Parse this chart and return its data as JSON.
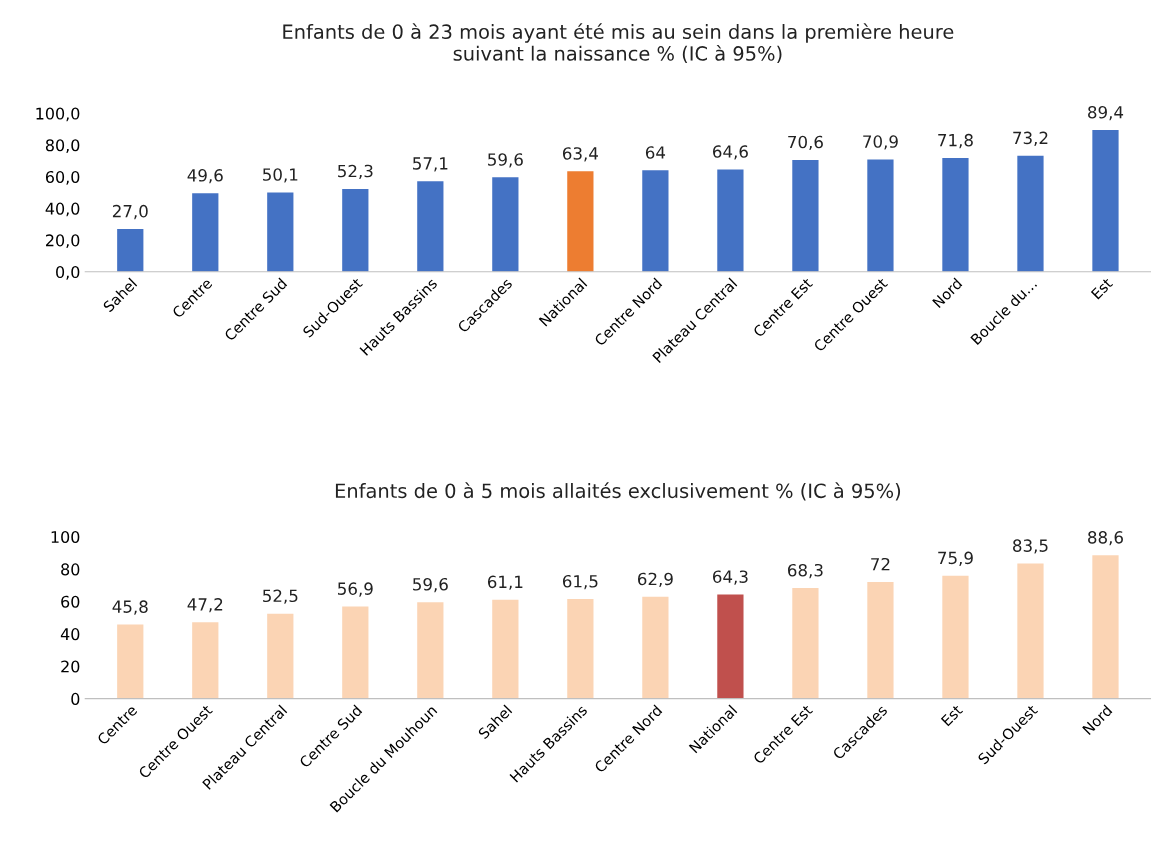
{
  "chart_data": [
    {
      "type": "bar",
      "title": "Enfants de 0 à 23 mois ayant été mis au sein dans la première heure\nsuivant la naissance % (IC à 95%)",
      "categories": [
        "Sahel",
        "Centre",
        "Centre Sud",
        "Sud-Ouest",
        "Hauts Bassins",
        "Cascades",
        "National",
        "Centre Nord",
        "Plateau Central",
        "Centre Est",
        "Centre Ouest",
        "Nord",
        "Boucle du…",
        "Est"
      ],
      "values": [
        27.0,
        49.6,
        50.1,
        52.3,
        57.1,
        59.6,
        63.4,
        64,
        64.6,
        70.6,
        70.9,
        71.8,
        73.2,
        89.4
      ],
      "value_labels": [
        "27,0",
        "49,6",
        "50,1",
        "52,3",
        "57,1",
        "59,6",
        "63,4",
        "64",
        "64,6",
        "70,6",
        "70,9",
        "71,8",
        "73,2",
        "89,4"
      ],
      "colors": [
        "#4472c4",
        "#4472c4",
        "#4472c4",
        "#4472c4",
        "#4472c4",
        "#4472c4",
        "#ed7d31",
        "#4472c4",
        "#4472c4",
        "#4472c4",
        "#4472c4",
        "#4472c4",
        "#4472c4",
        "#4472c4"
      ],
      "ylim": [
        0,
        100
      ],
      "yticks": [
        {
          "value": 0,
          "label": "0,0"
        },
        {
          "value": 20,
          "label": "20,0"
        },
        {
          "value": 40,
          "label": "40,0"
        },
        {
          "value": 60,
          "label": "60,0"
        },
        {
          "value": 80,
          "label": "80,0"
        },
        {
          "value": 100,
          "label": "100,0"
        }
      ]
    },
    {
      "type": "bar",
      "title": "Enfants de 0 à 5 mois allaités exclusivement % (IC à 95%)",
      "categories": [
        "Centre",
        "Centre Ouest",
        "Plateau Central",
        "Centre Sud",
        "Boucle du Mouhoun",
        "Sahel",
        "Hauts Bassins",
        "Centre Nord",
        "National",
        "Centre Est",
        "Cascades",
        "Est",
        "Sud-Ouest",
        "Nord"
      ],
      "values": [
        45.8,
        47.2,
        52.5,
        56.9,
        59.6,
        61.1,
        61.5,
        62.9,
        64.3,
        68.3,
        72,
        75.9,
        83.5,
        88.6
      ],
      "value_labels": [
        "45,8",
        "47,2",
        "52,5",
        "56,9",
        "59,6",
        "61,1",
        "61,5",
        "62,9",
        "64,3",
        "68,3",
        "72",
        "75,9",
        "83,5",
        "88,6"
      ],
      "colors": [
        "#fbd4b4",
        "#fbd4b4",
        "#fbd4b4",
        "#fbd4b4",
        "#fbd4b4",
        "#fbd4b4",
        "#fbd4b4",
        "#fbd4b4",
        "#c0504d",
        "#fbd4b4",
        "#fbd4b4",
        "#fbd4b4",
        "#fbd4b4",
        "#fbd4b4"
      ],
      "ylim": [
        0,
        100
      ],
      "yticks": [
        0,
        20,
        40,
        60,
        80,
        100
      ]
    }
  ]
}
